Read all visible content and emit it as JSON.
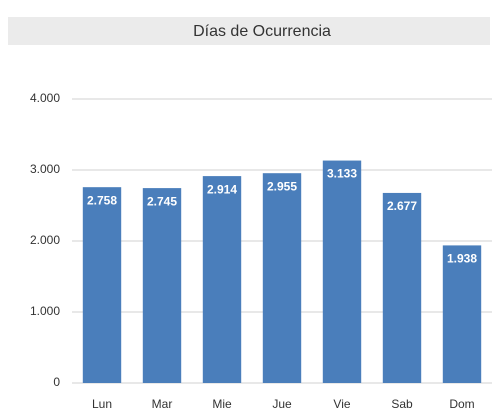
{
  "chart_data": {
    "type": "bar",
    "title": "Días de Ocurrencia",
    "categories": [
      "Lun",
      "Mar",
      "Mie",
      "Jue",
      "Vie",
      "Sab",
      "Dom"
    ],
    "values": [
      2758,
      2745,
      2914,
      2955,
      3133,
      2677,
      1938
    ],
    "value_labels": [
      "2.758",
      "2.745",
      "2.914",
      "2.955",
      "3.133",
      "2.677",
      "1.938"
    ],
    "color": "#4a7ebb",
    "ylim": [
      0,
      4000
    ],
    "yticks": [
      0,
      {
        "value": 1000,
        "label": "1.000"
      },
      {
        "value": 2000,
        "label": "2.000"
      },
      {
        "value": 3000,
        "label": "3.000"
      },
      {
        "value": 4000,
        "label": "4.000"
      }
    ],
    "grid": true
  }
}
